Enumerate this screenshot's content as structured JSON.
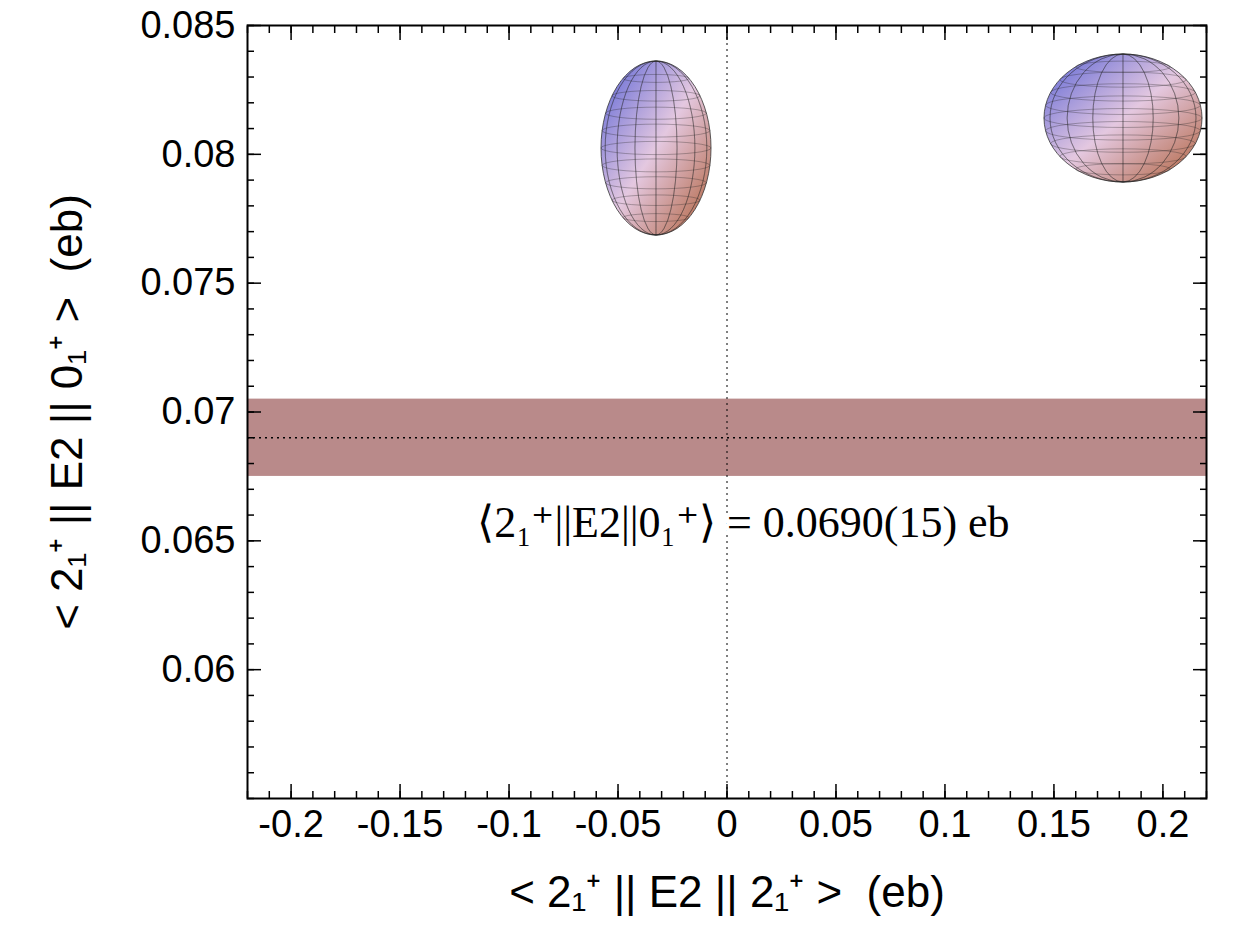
{
  "chart_data": {
    "type": "band",
    "x_label": "< 2₁⁺ || E2 || 2₁⁺ >  (eb)",
    "y_label": "< 2₁⁺ || E2 || 0₁⁺ >  (eb)",
    "xlim": [
      -0.22,
      0.22
    ],
    "ylim": [
      0.055,
      0.085
    ],
    "xticks": [
      -0.2,
      -0.15,
      -0.1,
      -0.05,
      0,
      0.05,
      0.1,
      0.15,
      0.2
    ],
    "yticks": [
      0.06,
      0.065,
      0.07,
      0.075,
      0.08,
      0.085
    ],
    "band": {
      "y": 0.069,
      "y_low": 0.0675,
      "y_high": 0.0705,
      "color": "#b98a8a",
      "line_style": "dotted"
    },
    "reference_line": {
      "x": 0,
      "line_style": "dotted"
    },
    "annotation": {
      "text": "⟨2₁⁺||E2||0₁⁺⟩ = 0.0690(15) eb",
      "x": 0.0075,
      "y": 0.0657
    }
  }
}
